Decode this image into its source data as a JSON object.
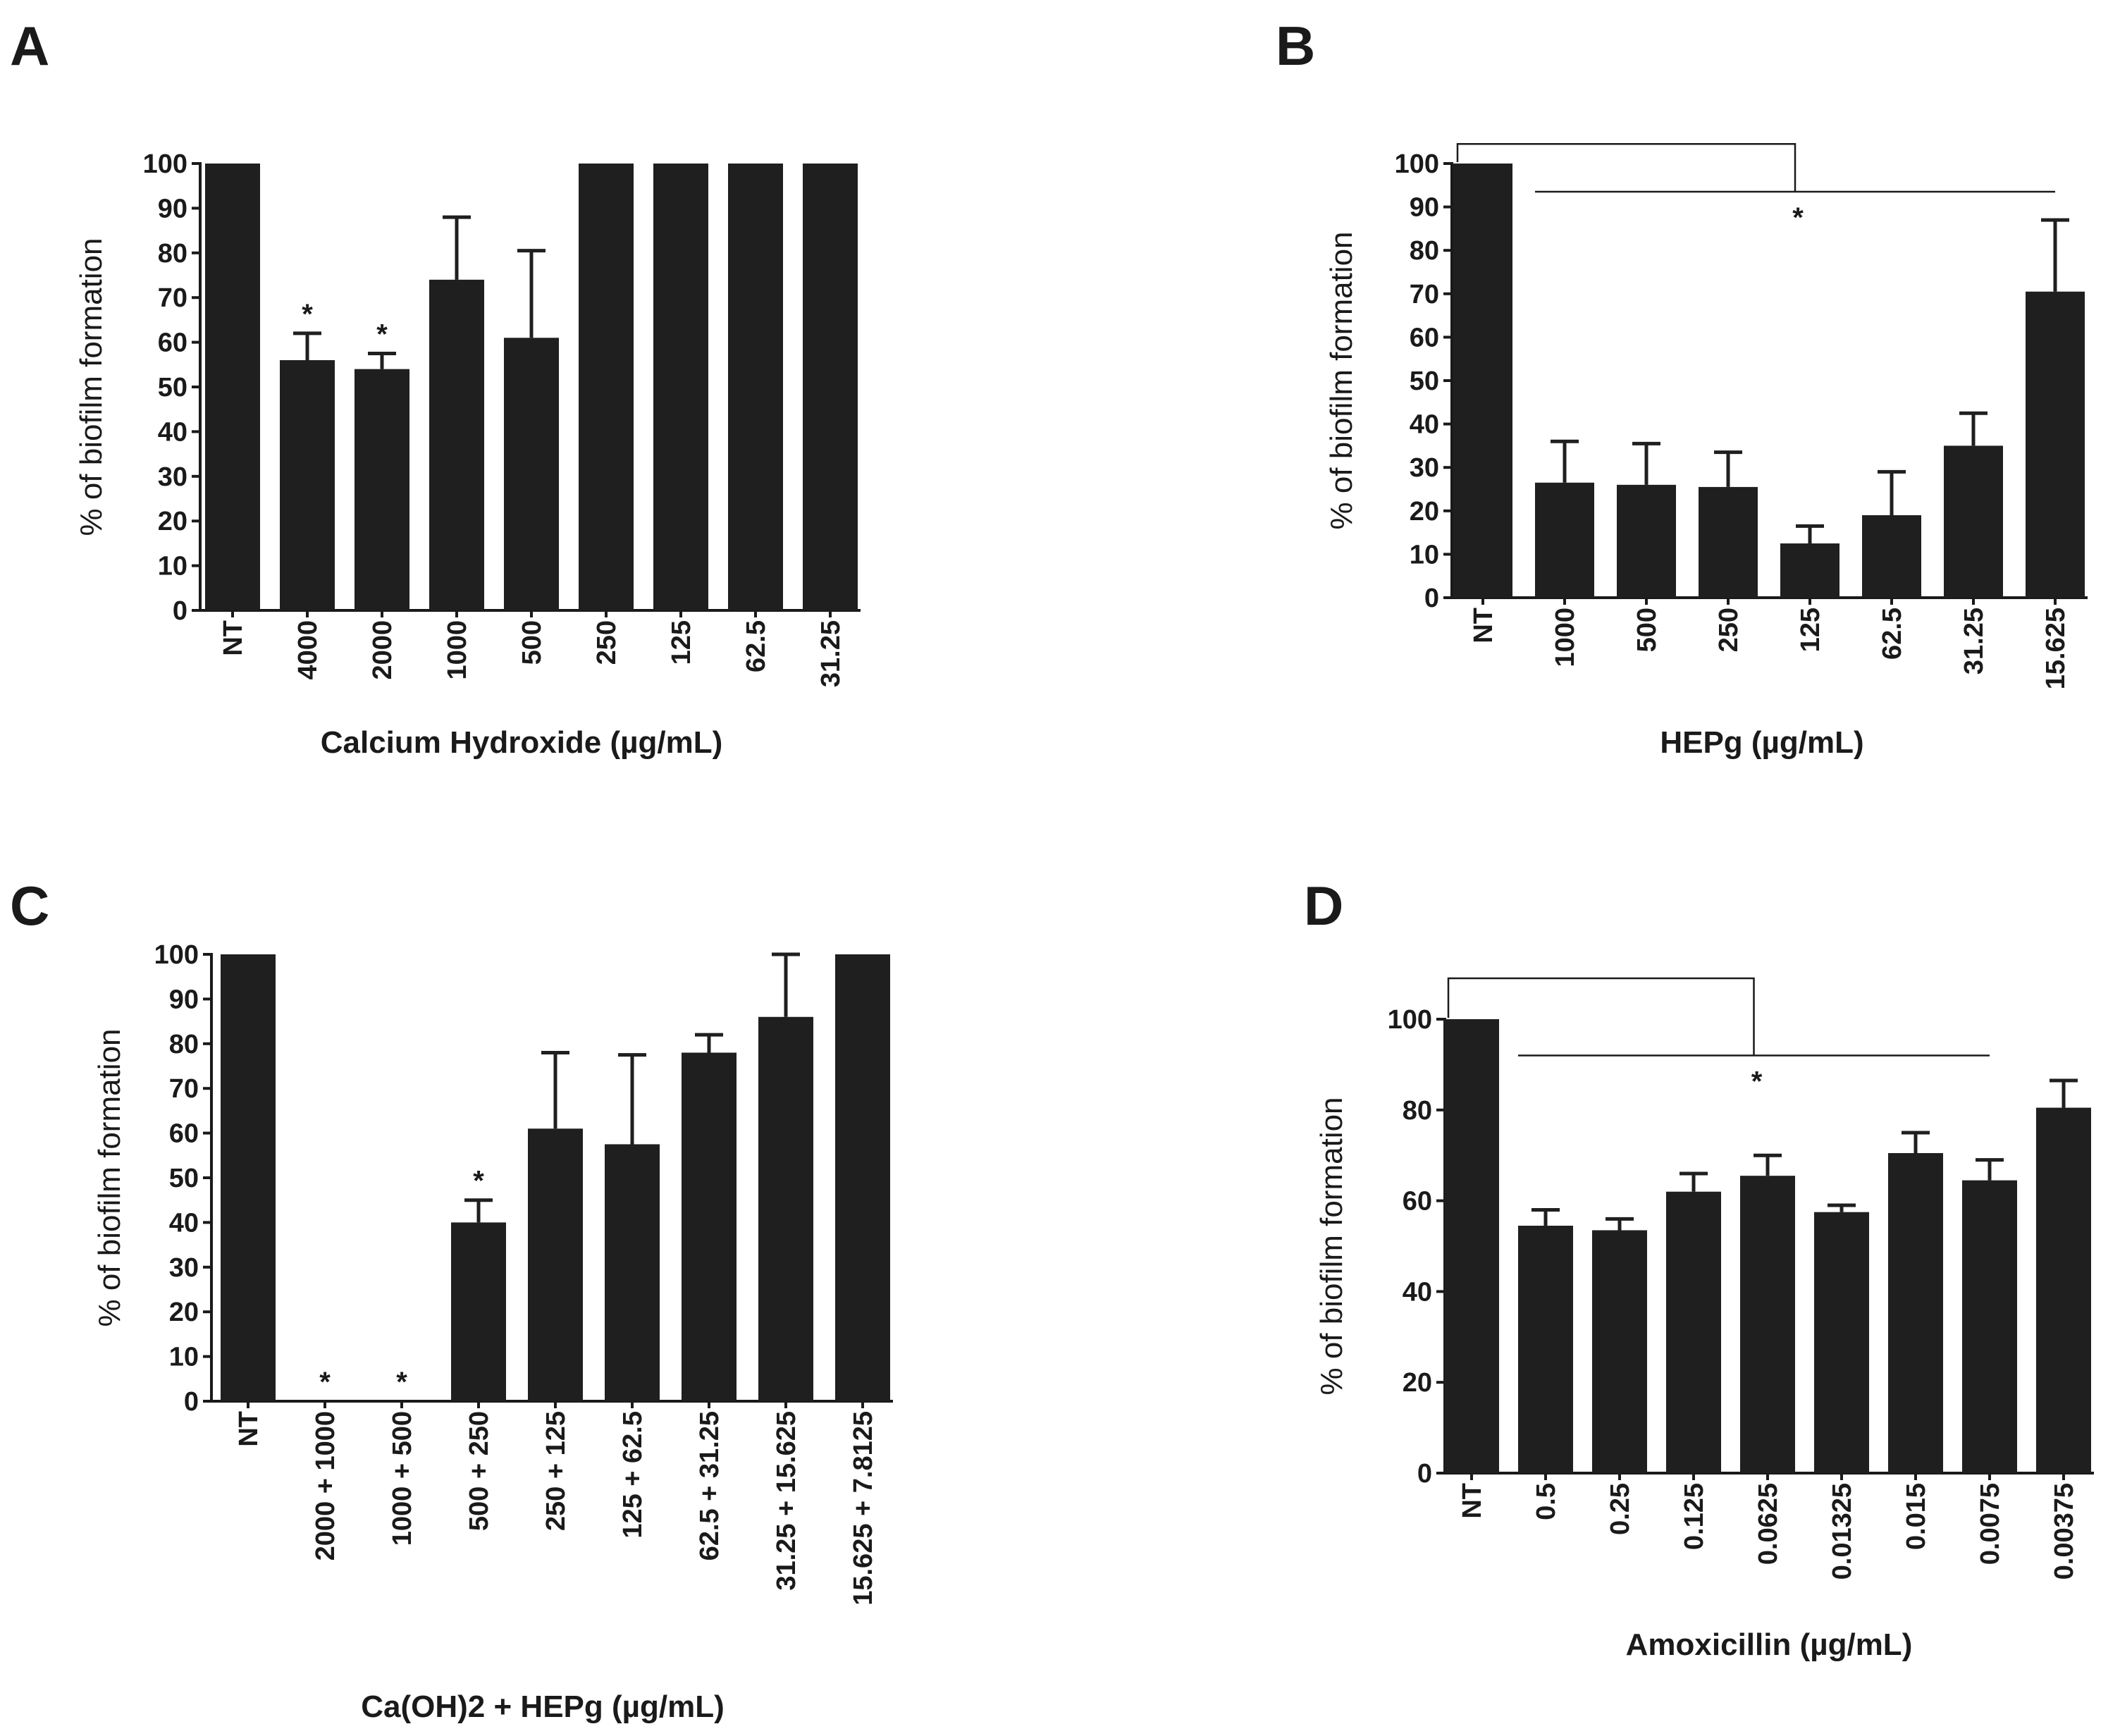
{
  "figure": {
    "panels": [
      "A",
      "B",
      "C",
      "D"
    ]
  },
  "chart_data": [
    {
      "panel": "A",
      "type": "bar",
      "title": "",
      "xlabel": "Calcium Hydroxide (µg/mL)",
      "ylabel": "% of biofilm formation",
      "ylim": [
        0,
        100
      ],
      "yticks": [
        0,
        10,
        20,
        30,
        40,
        50,
        60,
        70,
        80,
        90,
        100
      ],
      "categories": [
        "NT",
        "4000",
        "2000",
        "1000",
        "500",
        "250",
        "125",
        "62.5",
        "31.25"
      ],
      "values": [
        100,
        56,
        54,
        74,
        61,
        100,
        100,
        100,
        100
      ],
      "errors": [
        0,
        6,
        3.5,
        14,
        19.5,
        0,
        0,
        0,
        0
      ],
      "significant": [
        false,
        true,
        true,
        false,
        false,
        false,
        false,
        false,
        false
      ],
      "star_symbol": "*"
    },
    {
      "panel": "B",
      "type": "bar",
      "title": "",
      "xlabel": "HEPg (µg/mL)",
      "ylabel": "% of biofilm formation",
      "ylim": [
        0,
        100
      ],
      "yticks": [
        0,
        10,
        20,
        30,
        40,
        50,
        60,
        70,
        80,
        90,
        100
      ],
      "categories": [
        "NT",
        "1000",
        "500",
        "250",
        "125",
        "62.5",
        "31.25",
        "15.625"
      ],
      "values": [
        100,
        26.5,
        26,
        25.5,
        12.5,
        19,
        35,
        70.5
      ],
      "errors": [
        0,
        9.5,
        9.5,
        8,
        4,
        10,
        7.5,
        16.5
      ],
      "significant": [
        false,
        false,
        false,
        false,
        false,
        false,
        false,
        false
      ],
      "bracket": {
        "from": 0,
        "to_start": 1,
        "to_end": 7,
        "top": 104.5,
        "mid": 93.5,
        "label": "*"
      }
    },
    {
      "panel": "C",
      "type": "bar",
      "title": "",
      "xlabel": "Ca(OH)2 + HEPg (µg/mL)",
      "ylabel": "% of biofilm formation",
      "ylim": [
        0,
        100
      ],
      "yticks": [
        0,
        10,
        20,
        30,
        40,
        50,
        60,
        70,
        80,
        90,
        100
      ],
      "categories": [
        "NT",
        "2000 + 1000",
        "1000 + 500",
        "500 + 250",
        "250 + 125",
        "125 + 62.5",
        "62.5 + 31.25",
        "31.25 + 15.625",
        "15.625 + 7.8125"
      ],
      "values": [
        100,
        0,
        0,
        40,
        61,
        57.5,
        78,
        86,
        100
      ],
      "errors": [
        0,
        0,
        0,
        5,
        17,
        20,
        4,
        14,
        0
      ],
      "significant": [
        false,
        true,
        true,
        true,
        false,
        false,
        false,
        false,
        false
      ],
      "star_symbol": "*"
    },
    {
      "panel": "D",
      "type": "bar",
      "title": "",
      "xlabel": "Amoxicillin (µg/mL)",
      "ylabel": "% of biofilm formation",
      "ylim": [
        0,
        100
      ],
      "yticks": [
        0,
        20,
        40,
        60,
        80,
        100
      ],
      "categories": [
        "NT",
        "0.5",
        "0.25",
        "0.125",
        "0.0625",
        "0.01325",
        "0.015",
        "0.0075",
        "0.00375"
      ],
      "values": [
        100,
        54.5,
        53.5,
        62,
        65.5,
        57.5,
        70.5,
        64.5,
        80.5
      ],
      "errors": [
        0,
        3.5,
        2.5,
        4,
        4.5,
        1.5,
        4.5,
        4.5,
        6
      ],
      "significant": [
        false,
        false,
        false,
        false,
        false,
        false,
        false,
        false,
        false
      ],
      "bracket": {
        "from": 0,
        "to_start": 1,
        "to_end": 7,
        "top": 109,
        "mid": 92,
        "label": "*"
      }
    }
  ]
}
